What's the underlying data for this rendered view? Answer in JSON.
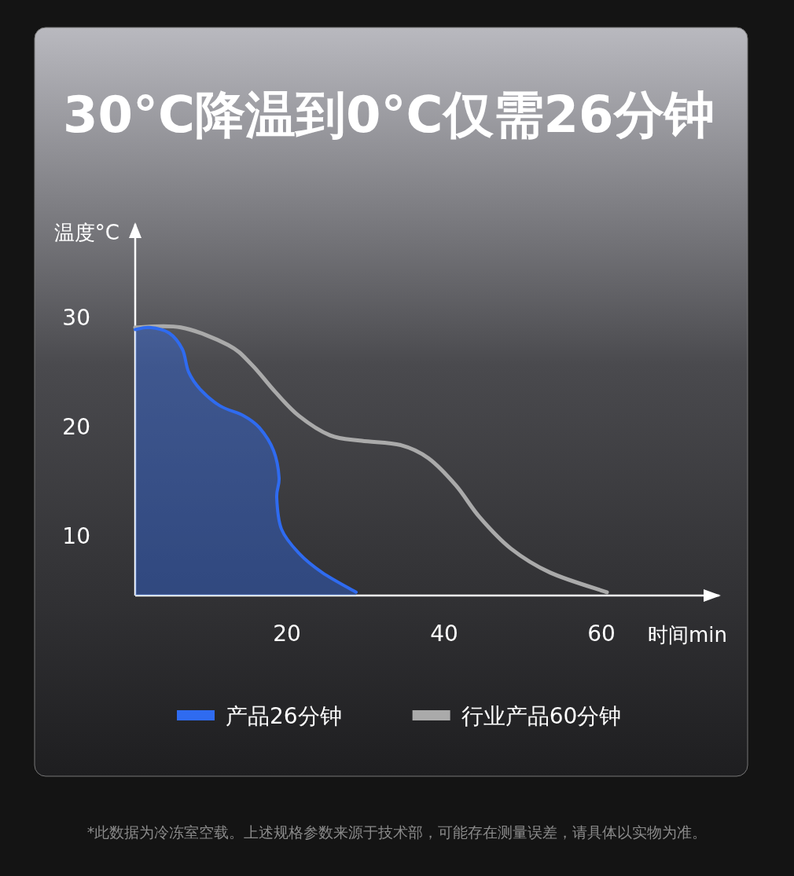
{
  "chart_data": {
    "type": "line",
    "title": "30°C降温到0°C仅需26分钟",
    "xlabel": "时间min",
    "ylabel": "温度°C",
    "xlim": [
      0.7,
      75
    ],
    "ylim": [
      4.5,
      38.6
    ],
    "xticks": [
      20,
      40,
      60
    ],
    "yticks": [
      10,
      20,
      30
    ],
    "legend": "bottom",
    "series": [
      {
        "name": "产品26分钟",
        "type": "area",
        "color": "#2f6bf0",
        "x": [
          0.7,
          2.5,
          5.0,
          6.7,
          7.5,
          9.0,
          11.5,
          14.5,
          16.5,
          18.3,
          19.0,
          18.7,
          19.3,
          21.5,
          24.5,
          28.8
        ],
        "values": [
          28.9,
          29.1,
          28.6,
          27.1,
          25.0,
          23.4,
          21.9,
          21.0,
          19.9,
          17.8,
          15.3,
          13.5,
          10.6,
          8.4,
          6.6,
          4.8
        ]
      },
      {
        "name": "行业产品60分钟",
        "type": "line",
        "color": "#aaaaaa",
        "x": [
          0.7,
          6.5,
          12.5,
          15.5,
          18.5,
          21.5,
          25.5,
          29.5,
          34.5,
          38.0,
          41.5,
          44.5,
          48.5,
          53.5,
          60.7
        ],
        "values": [
          29.1,
          29.1,
          27.5,
          25.7,
          23.2,
          21.0,
          19.2,
          18.7,
          18.3,
          17.1,
          14.6,
          11.7,
          8.8,
          6.6,
          4.8
        ]
      }
    ],
    "annotations": [
      "*此数据为冷冻室空载。上述规格参数来源于技术部，可能存在测量误差，请具体以实物为准。"
    ]
  }
}
